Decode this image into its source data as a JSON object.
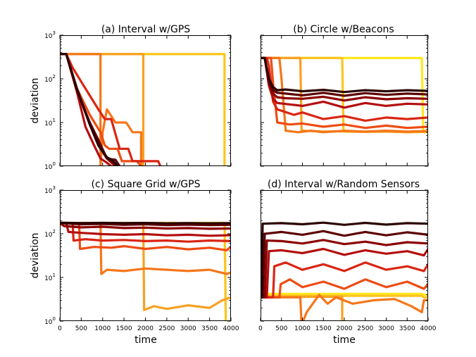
{
  "figure": {
    "xlabel": "time",
    "ylabel": "deviation",
    "x_ticks": [
      "0",
      "500",
      "1000",
      "1500",
      "2000",
      "2500",
      "3000",
      "3500",
      "4000"
    ],
    "y_ticks": [
      "10^0",
      "10^1",
      "10^2",
      "10^3"
    ],
    "y_tick_base": "10",
    "y_tick_exps": [
      "0",
      "1",
      "2",
      "3"
    ],
    "colors": [
      "#2a0000",
      "#5c0000",
      "#8b0000",
      "#b40e0e",
      "#d92512",
      "#ee4c12",
      "#f5761a",
      "#f9a020",
      "#fcc520",
      "#ffe81f"
    ]
  },
  "chart_data": [
    {
      "type": "line",
      "title": "(a) Interval w/GPS",
      "xlabel": "",
      "ylabel": "deviation",
      "xlim": [
        0,
        4000
      ],
      "ylim": [
        1,
        1000
      ],
      "y_scale": "log",
      "series": [
        {
          "x": [
            0,
            150,
            400,
            700,
            900,
            1100,
            1250,
            1350
          ],
          "values": [
            370,
            370,
            60,
            9,
            3,
            1.6,
            1.3,
            1
          ]
        },
        {
          "x": [
            0,
            150,
            400,
            700,
            900,
            1100,
            1300,
            1400
          ],
          "values": [
            370,
            370,
            55,
            10,
            4,
            1.5,
            1.4,
            1
          ]
        },
        {
          "x": [
            0,
            150,
            400,
            700,
            900,
            1100,
            1300
          ],
          "values": [
            370,
            370,
            55,
            9,
            3,
            1.5,
            1
          ]
        },
        {
          "x": [
            0,
            150,
            400,
            600,
            800,
            950,
            1100,
            1200
          ],
          "values": [
            370,
            370,
            50,
            8,
            3,
            1.5,
            1.2,
            1
          ]
        },
        {
          "x": [
            0,
            150,
            300,
            600,
            900,
            1050,
            1200,
            1400,
            1600,
            1700,
            1900,
            2300,
            2350
          ],
          "values": [
            370,
            370,
            180,
            60,
            20,
            12,
            12,
            2.5,
            2.5,
            1.3,
            1.3,
            1.3,
            1
          ]
        },
        {
          "x": [
            0,
            150,
            400,
            700,
            950,
            1050,
            1150,
            1350,
            1450,
            1800,
            1900
          ],
          "values": [
            370,
            370,
            60,
            15,
            6,
            3,
            2.5,
            2.5,
            1.3,
            1.3,
            1
          ]
        },
        {
          "x": [
            0,
            450,
            950,
            950,
            1000,
            1100,
            1300,
            1550,
            1700,
            1900,
            1900
          ],
          "values": [
            370,
            370,
            370,
            1,
            6,
            20,
            10,
            10,
            6,
            6,
            1
          ]
        },
        {
          "x": [
            0,
            1950,
            1950
          ],
          "values": [
            370,
            370,
            1
          ]
        },
        {
          "x": [
            0,
            3850,
            3850
          ],
          "values": [
            370,
            370,
            1
          ]
        },
        {
          "x": [
            0,
            3850,
            3850
          ],
          "values": [
            370,
            370,
            1
          ]
        }
      ]
    },
    {
      "type": "line",
      "title": "(b) Circle w/Beacons",
      "xlabel": "",
      "ylabel": "",
      "xlim": [
        0,
        4000
      ],
      "ylim": [
        1,
        1000
      ],
      "y_scale": "log",
      "series": [
        {
          "x": [
            0,
            100,
            200,
            300,
            400,
            600,
            1000,
            1500,
            2000,
            2500,
            3000,
            3500,
            4000
          ],
          "values": [
            300,
            300,
            100,
            65,
            55,
            57,
            52,
            56,
            50,
            55,
            52,
            55,
            53
          ]
        },
        {
          "x": [
            0,
            100,
            200,
            300,
            400,
            600,
            1000,
            1500,
            2000,
            2500,
            3000,
            3500,
            4000
          ],
          "values": [
            300,
            300,
            90,
            55,
            48,
            46,
            42,
            48,
            41,
            47,
            43,
            46,
            44
          ]
        },
        {
          "x": [
            0,
            100,
            200,
            300,
            400,
            600,
            1000,
            1500,
            2000,
            2500,
            3000,
            3500,
            4000
          ],
          "values": [
            300,
            300,
            80,
            45,
            38,
            36,
            35,
            39,
            32,
            38,
            34,
            36,
            35
          ]
        },
        {
          "x": [
            0,
            100,
            200,
            300,
            400,
            700,
            1000,
            1500,
            2000,
            2500,
            3000,
            3500,
            4000
          ],
          "values": [
            300,
            300,
            70,
            35,
            28,
            26,
            24,
            30,
            22,
            28,
            24,
            27,
            26
          ]
        },
        {
          "x": [
            0,
            150,
            200,
            300,
            400,
            800,
            1000,
            1500,
            2000,
            2500,
            3000,
            3500,
            4000
          ],
          "values": [
            300,
            300,
            200,
            30,
            20,
            15,
            17,
            12,
            14,
            11,
            13,
            12,
            13
          ]
        },
        {
          "x": [
            0,
            250,
            300,
            400,
            700,
            1000,
            1500,
            2000,
            2500,
            3000,
            3500,
            4000
          ],
          "values": [
            300,
            300,
            80,
            10,
            9,
            9.5,
            8,
            9,
            7.5,
            8.5,
            7.5,
            8
          ]
        },
        {
          "x": [
            0,
            450,
            500,
            600,
            900,
            1200,
            1500,
            2000,
            2500,
            3000,
            3500,
            4000
          ],
          "values": [
            300,
            300,
            100,
            6.5,
            6,
            6.5,
            6,
            6.5,
            6.2,
            6.5,
            6.2,
            6.4
          ]
        },
        {
          "x": [
            0,
            950,
            980,
            1500,
            2000,
            2500,
            3000,
            3500,
            4000
          ],
          "values": [
            300,
            300,
            6.5,
            6.2,
            6.3,
            6.1,
            6.2,
            6,
            6.2
          ]
        },
        {
          "x": [
            0,
            1950,
            1980,
            2500,
            3000,
            3500,
            4000
          ],
          "values": [
            300,
            300,
            6.2,
            6.1,
            6.3,
            6,
            6.1
          ]
        },
        {
          "x": [
            0,
            3850,
            3880,
            4000
          ],
          "values": [
            300,
            300,
            6,
            6
          ]
        }
      ]
    },
    {
      "type": "line",
      "title": "(c) Square Grid w/GPS",
      "xlabel": "time",
      "ylabel": "deviation",
      "xlim": [
        0,
        4000
      ],
      "ylim": [
        1,
        1000
      ],
      "y_scale": "log",
      "series": [
        {
          "x": [
            0,
            500,
            1000,
            1500,
            2000,
            2500,
            3000,
            3500,
            4000
          ],
          "values": [
            180,
            175,
            178,
            175,
            177,
            174,
            176,
            174,
            176
          ]
        },
        {
          "x": [
            0,
            500,
            1000,
            1500,
            2000,
            2500,
            3000,
            3500,
            4000
          ],
          "values": [
            175,
            165,
            168,
            160,
            165,
            158,
            162,
            158,
            160
          ]
        },
        {
          "x": [
            0,
            100,
            500,
            1000,
            1500,
            2000,
            2500,
            3000,
            3500,
            4000
          ],
          "values": [
            175,
            150,
            140,
            145,
            135,
            138,
            132,
            135,
            130,
            132
          ]
        },
        {
          "x": [
            0,
            150,
            200,
            500,
            1000,
            1500,
            2000,
            2500,
            3000,
            3500,
            4000
          ],
          "values": [
            175,
            175,
            110,
            105,
            98,
            95,
            98,
            92,
            95,
            90,
            93
          ]
        },
        {
          "x": [
            0,
            300,
            320,
            600,
            1000,
            1500,
            2000,
            2500,
            3000,
            3500,
            4000
          ],
          "values": [
            175,
            175,
            70,
            75,
            70,
            72,
            68,
            70,
            66,
            70,
            68
          ]
        },
        {
          "x": [
            0,
            450,
            470,
            800,
            1200,
            1500,
            2000,
            2500,
            3000,
            3500,
            3900,
            4000
          ],
          "values": [
            175,
            175,
            45,
            50,
            48,
            52,
            45,
            50,
            44,
            48,
            42,
            50
          ]
        },
        {
          "x": [
            0,
            950,
            970,
            1100,
            1500,
            2000,
            2500,
            3000,
            3500,
            3900,
            4000
          ],
          "values": [
            175,
            175,
            12,
            15,
            14,
            16,
            15,
            14,
            15,
            12,
            13
          ]
        },
        {
          "x": [
            0,
            1950,
            1970,
            2200,
            2500,
            3000,
            3500,
            3800,
            4000
          ],
          "values": [
            175,
            175,
            1.8,
            2.2,
            1.9,
            2.3,
            2,
            3,
            3.5
          ]
        },
        {
          "x": [
            0,
            3850,
            3880
          ],
          "values": [
            175,
            175,
            1
          ]
        },
        {
          "x": [
            0,
            3850,
            3880
          ],
          "values": [
            175,
            175,
            1
          ]
        }
      ]
    },
    {
      "type": "line",
      "title": "(d) Interval w/Random Sensors",
      "xlabel": "time",
      "ylabel": "",
      "xlim": [
        0,
        4000
      ],
      "ylim": [
        1,
        1000
      ],
      "y_scale": "log",
      "series": [
        {
          "x": [
            0,
            20,
            50,
            500,
            1000,
            1500,
            2000,
            2500,
            3000,
            3500,
            4000
          ],
          "values": [
            3.5,
            3.5,
            170,
            175,
            165,
            180,
            160,
            178,
            162,
            175,
            170
          ]
        },
        {
          "x": [
            0,
            50,
            100,
            500,
            1000,
            1500,
            2000,
            2500,
            3000,
            3500,
            4000
          ],
          "values": [
            3.5,
            3.5,
            100,
            110,
            95,
            115,
            90,
            110,
            92,
            108,
            95
          ]
        },
        {
          "x": [
            0,
            100,
            150,
            500,
            1000,
            1500,
            2000,
            2500,
            3000,
            3500,
            4000
          ],
          "values": [
            3.5,
            3.5,
            70,
            68,
            60,
            72,
            58,
            66,
            55,
            64,
            60
          ]
        },
        {
          "x": [
            0,
            150,
            200,
            500,
            1000,
            1500,
            2000,
            2500,
            3000,
            3500,
            3900,
            4000
          ],
          "values": [
            3.5,
            3.5,
            40,
            42,
            36,
            45,
            33,
            42,
            35,
            40,
            32,
            45
          ]
        },
        {
          "x": [
            0,
            300,
            330,
            600,
            1000,
            1500,
            2000,
            2500,
            3000,
            3500,
            3900,
            4000
          ],
          "values": [
            3.5,
            3.5,
            18,
            22,
            15,
            20,
            14,
            22,
            15,
            18,
            14,
            20
          ]
        },
        {
          "x": [
            0,
            450,
            480,
            700,
            1000,
            1500,
            2000,
            2500,
            3000,
            3500,
            3900,
            4000
          ],
          "values": [
            3.5,
            3.5,
            7,
            9,
            6,
            8,
            5.5,
            9,
            6,
            8,
            5.5,
            7
          ]
        },
        {
          "x": [
            0,
            950,
            980,
            1100,
            1400,
            1600,
            1800,
            2200,
            2700,
            3200,
            3600,
            3850,
            3900,
            4000
          ],
          "values": [
            3.5,
            3.5,
            0.8,
            1.6,
            4,
            2.5,
            3.5,
            2.5,
            3,
            3.2,
            2.2,
            1.6,
            3,
            3
          ]
        },
        {
          "x": [
            0,
            1950,
            1950
          ],
          "values": [
            3.6,
            3.6,
            1
          ]
        },
        {
          "x": [
            0,
            3850,
            3900,
            4000
          ],
          "values": [
            3.8,
            3.8,
            3.5,
            3.5
          ]
        },
        {
          "x": [
            0,
            3850,
            3900,
            4000
          ],
          "values": [
            4.2,
            4.2,
            4,
            4
          ]
        }
      ]
    }
  ]
}
